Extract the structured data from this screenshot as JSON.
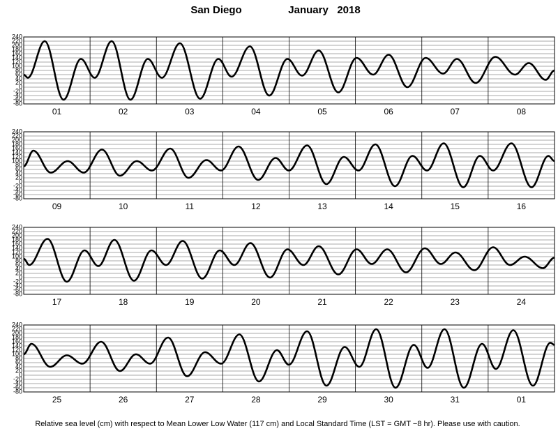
{
  "title": "San Diego",
  "month": "January   2018",
  "footnote": "Relative sea level (cm) with respect to Mean Lower Low Water (117 cm) and Local Standard Time (LST = GMT −8 hr). Please use with caution.",
  "chart_data": [
    {
      "type": "line",
      "categories": [
        "01",
        "02",
        "03",
        "04",
        "05",
        "06",
        "07",
        "08"
      ],
      "xlim": [
        0,
        192
      ],
      "xticks": [
        0,
        24,
        48,
        72,
        96,
        120,
        144,
        168,
        192
      ],
      "ylim": [
        -80,
        240
      ],
      "yticks": [
        -80,
        -60,
        -40,
        -20,
        0,
        20,
        40,
        60,
        80,
        100,
        120,
        140,
        160,
        180,
        200,
        220,
        240
      ],
      "grid": true,
      "color": "#000000",
      "x": [
        0,
        1.5,
        7.6,
        14.4,
        20.7,
        25.7,
        31.8,
        38.6,
        44.9,
        50,
        56.5,
        63.8,
        70.4,
        75.2,
        81.8,
        88.8,
        95.4,
        100.7,
        106.7,
        113.8,
        120.4,
        126.4,
        132,
        138.8,
        145.4,
        151.7,
        156.7,
        163.5,
        170.6,
        177.7,
        182.7,
        188.8,
        192
      ],
      "values": [
        60,
        45,
        220,
        -60,
        135,
        45,
        220,
        -60,
        135,
        45,
        210,
        -55,
        135,
        50,
        195,
        -40,
        135,
        55,
        175,
        -25,
        140,
        60,
        155,
        0,
        140,
        65,
        135,
        20,
        145,
        60,
        115,
        35,
        80
      ]
    },
    {
      "type": "line",
      "categories": [
        "09",
        "10",
        "11",
        "12",
        "13",
        "14",
        "15",
        "16"
      ],
      "xlim": [
        0,
        192
      ],
      "xticks": [
        0,
        24,
        48,
        72,
        96,
        120,
        144,
        168,
        192
      ],
      "ylim": [
        -80,
        240
      ],
      "yticks": [
        -80,
        -60,
        -40,
        -20,
        0,
        20,
        40,
        60,
        80,
        100,
        120,
        140,
        160,
        180,
        200,
        220,
        240
      ],
      "grid": true,
      "color": "#000000",
      "x": [
        0,
        3.5,
        9.8,
        15.9,
        21.7,
        28.3,
        34.8,
        40.9,
        46.4,
        53,
        59.6,
        66.1,
        71.4,
        77.7,
        84.8,
        91.1,
        95.9,
        102.5,
        109.5,
        115.8,
        121.1,
        127.2,
        134.3,
        140.6,
        145.9,
        151.9,
        159,
        165,
        169.8,
        176.4,
        183.7,
        189.8,
        192
      ],
      "values": [
        75,
        150,
        45,
        100,
        45,
        155,
        30,
        100,
        55,
        160,
        20,
        105,
        55,
        170,
        10,
        115,
        55,
        175,
        -10,
        120,
        55,
        180,
        -20,
        125,
        55,
        185,
        -25,
        125,
        55,
        185,
        -25,
        125,
        100
      ]
    },
    {
      "type": "line",
      "categories": [
        "17",
        "18",
        "19",
        "20",
        "21",
        "22",
        "23",
        "24"
      ],
      "xlim": [
        0,
        192
      ],
      "xticks": [
        0,
        24,
        48,
        72,
        96,
        120,
        144,
        168,
        192
      ],
      "ylim": [
        -80,
        240
      ],
      "yticks": [
        -80,
        -60,
        -40,
        -20,
        0,
        20,
        40,
        60,
        80,
        100,
        120,
        140,
        160,
        180,
        200,
        220,
        240
      ],
      "grid": true,
      "color": "#000000",
      "x": [
        0,
        2,
        8.6,
        15.6,
        22,
        27,
        32.8,
        39.9,
        46.2,
        51.5,
        57.5,
        64.6,
        70.9,
        76.2,
        82,
        89.1,
        95.4,
        101.2,
        106.7,
        113.8,
        120.4,
        125.9,
        131.5,
        138.3,
        145.1,
        150.9,
        156.2,
        163,
        169.8,
        175.9,
        181.2,
        187.8,
        192
      ],
      "values": [
        90,
        60,
        185,
        -20,
        130,
        55,
        180,
        -15,
        130,
        60,
        175,
        -5,
        130,
        60,
        165,
        0,
        135,
        60,
        150,
        15,
        135,
        65,
        135,
        25,
        140,
        65,
        120,
        35,
        145,
        60,
        100,
        45,
        95
      ]
    },
    {
      "type": "line",
      "categories": [
        "25",
        "26",
        "27",
        "28",
        "29",
        "30",
        "31",
        "01"
      ],
      "xlim": [
        0,
        192
      ],
      "xticks": [
        0,
        24,
        48,
        72,
        96,
        120,
        144,
        168,
        192
      ],
      "ylim": [
        -80,
        240
      ],
      "yticks": [
        -80,
        -60,
        -40,
        -20,
        0,
        20,
        40,
        60,
        80,
        100,
        120,
        140,
        160,
        180,
        200,
        220,
        240
      ],
      "grid": true,
      "color": "#000000",
      "x": [
        0,
        2.8,
        9.6,
        15.6,
        21.2,
        28,
        34.8,
        40.6,
        45.7,
        52.2,
        59.1,
        65.6,
        71.4,
        78,
        85.1,
        91.6,
        95.9,
        102.5,
        109.5,
        116.1,
        121.4,
        127.5,
        134.5,
        141.1,
        146.1,
        152.2,
        159.2,
        165.8,
        170.8,
        177.1,
        184.2,
        190.5,
        192
      ],
      "values": [
        100,
        150,
        40,
        95,
        55,
        160,
        20,
        100,
        55,
        180,
        -5,
        110,
        55,
        195,
        -30,
        120,
        50,
        210,
        -50,
        135,
        40,
        220,
        -60,
        145,
        35,
        220,
        -60,
        150,
        30,
        215,
        -50,
        155,
        145
      ]
    }
  ]
}
